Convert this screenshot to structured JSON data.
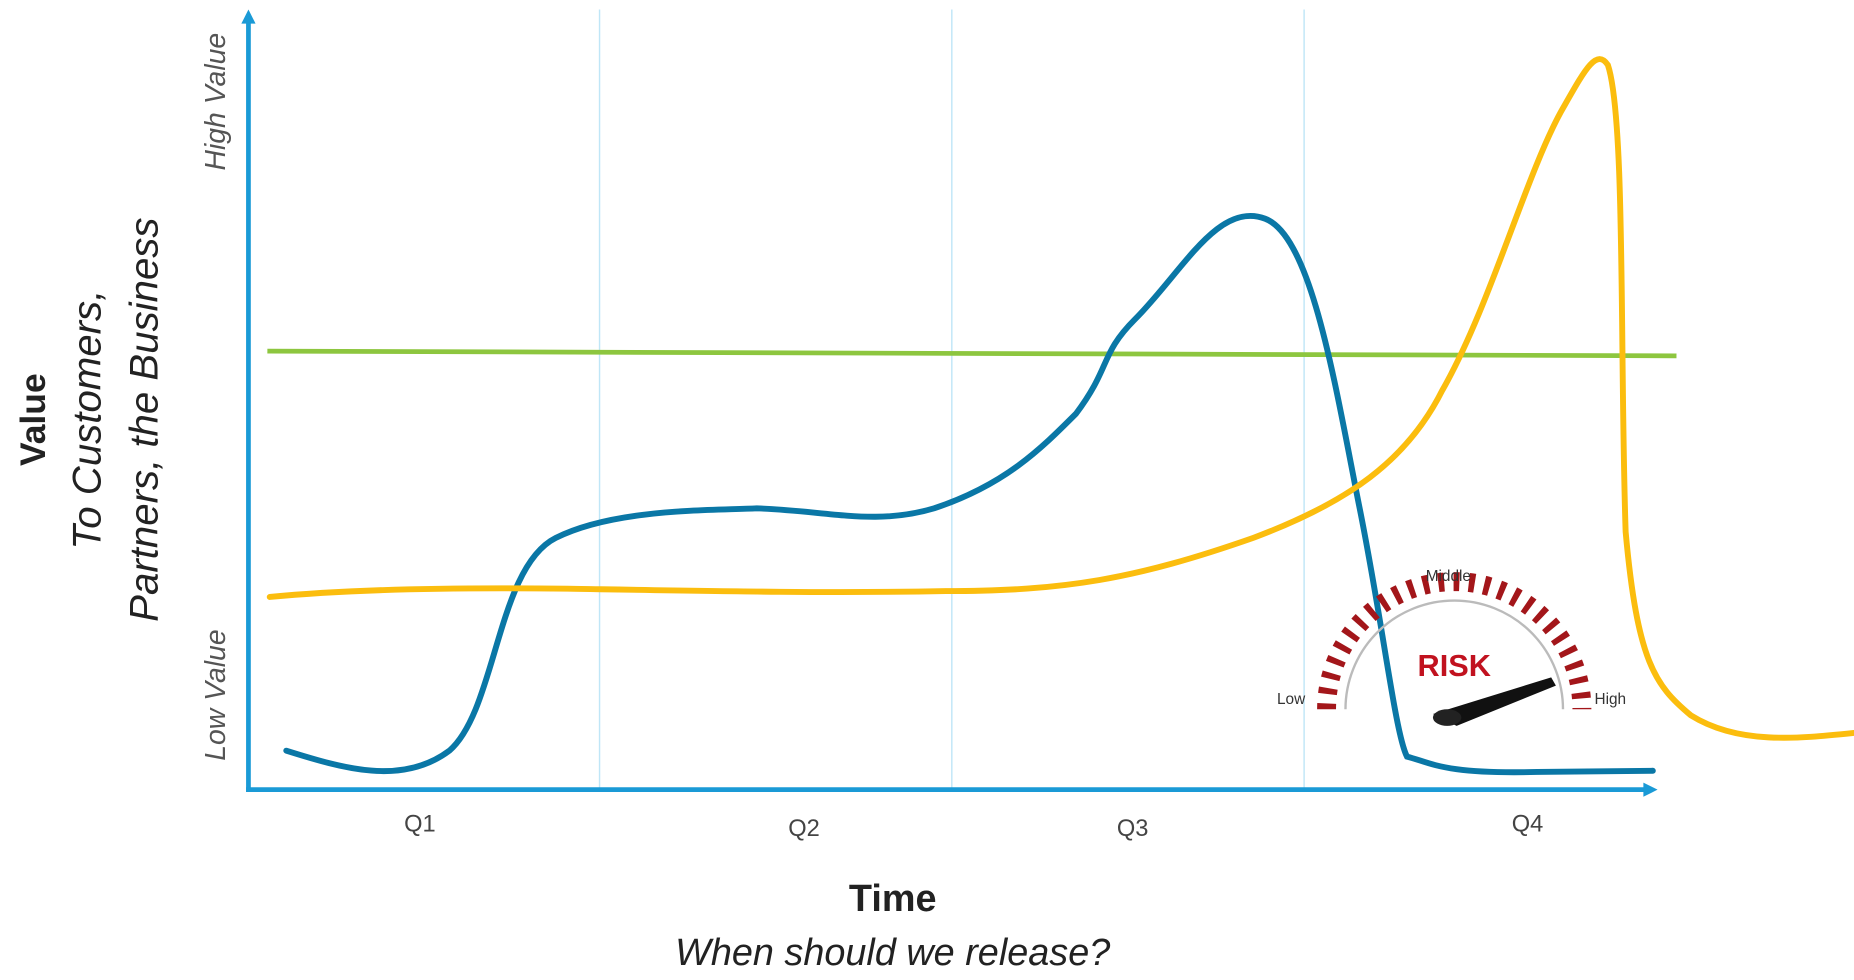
{
  "y_axis": {
    "title": "Value",
    "subtitle_lines": [
      "To Customers,",
      "Partners, the Business"
    ],
    "high_label": "High Value",
    "low_label": "Low Value"
  },
  "x_axis": {
    "quarters": [
      "Q1",
      "Q2",
      "Q3",
      "Q4"
    ],
    "title": "Time",
    "subtitle": "When should we release?"
  },
  "gauge": {
    "title": "RISK",
    "low": "Low",
    "middle": "Middle",
    "high": "High"
  }
}
